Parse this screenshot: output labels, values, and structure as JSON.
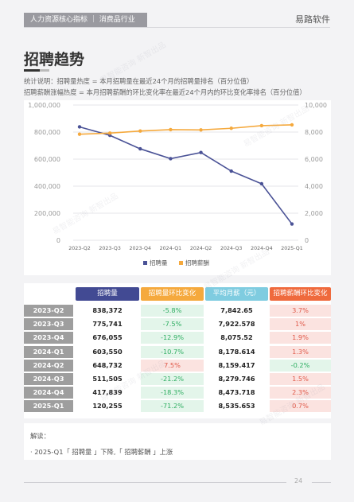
{
  "header": {
    "breadcrumb": "人力资源核心指标 ｜ 消费品行业",
    "brand": "易路软件"
  },
  "page": {
    "title": "招聘趋势",
    "desc_line1": "统计说明：招聘量热度 = 本月招聘量在最近24个月的招聘量排名（百分位值）",
    "desc_line2": "招聘薪酬涨幅热度 = 本月招聘薪酬的环比变化率在最近24个月内的环比变化率排名（百分位值）",
    "page_number": "24",
    "watermark": "易智能咨询 新智出品"
  },
  "chart_data": {
    "type": "line",
    "categories": [
      "2023-Q2",
      "2023-Q3",
      "2023-Q4",
      "2024-Q1",
      "2024-Q2",
      "2024-Q3",
      "2024-Q4",
      "2025-Q1"
    ],
    "series": [
      {
        "name": "招聘量",
        "axis": "left",
        "color": "#4a5296",
        "values": [
          838372,
          775741,
          676055,
          603550,
          648732,
          511505,
          417839,
          120255
        ]
      },
      {
        "name": "招聘薪酬",
        "axis": "right",
        "color": "#f5a93d",
        "values": [
          7842.65,
          7922.578,
          8075.52,
          8178.614,
          8159.417,
          8279.746,
          8473.718,
          8535.653
        ]
      }
    ],
    "y_left_ticks": [
      "1,000,000",
      "800,000",
      "600,000",
      "400,000",
      "200,000",
      "0"
    ],
    "y_right_ticks": [
      "10,000",
      "8,000",
      "6,000",
      "4,000",
      "2,000",
      "0"
    ],
    "y_left_range": [
      0,
      1000000
    ],
    "y_right_range": [
      0,
      10000
    ],
    "grid": true,
    "legend_position": "bottom"
  },
  "table": {
    "headers": [
      "招聘量",
      "招聘量环比变化",
      "平均月薪（元）",
      "招聘薪酬环比变化"
    ],
    "header_colors": [
      "#424a93",
      "#f5a93d",
      "#7fcce0",
      "#ef6a3d"
    ],
    "rows": [
      {
        "label": "2023-Q2",
        "volume": "838,372",
        "volume_change": "-5.8%",
        "salary": "7,842.65",
        "salary_change": "3.7%"
      },
      {
        "label": "2023-Q3",
        "volume": "775,741",
        "volume_change": "-7.5%",
        "salary": "7,922.578",
        "salary_change": "1%"
      },
      {
        "label": "2023-Q4",
        "volume": "676,055",
        "volume_change": "-12.9%",
        "salary": "8,075.52",
        "salary_change": "1.9%"
      },
      {
        "label": "2024-Q1",
        "volume": "603,550",
        "volume_change": "-10.7%",
        "salary": "8,178.614",
        "salary_change": "1.3%"
      },
      {
        "label": "2024-Q2",
        "volume": "648,732",
        "volume_change": "7.5%",
        "salary": "8,159.417",
        "salary_change": "-0.2%"
      },
      {
        "label": "2024-Q3",
        "volume": "511,505",
        "volume_change": "-21.2%",
        "salary": "8,279.746",
        "salary_change": "1.5%"
      },
      {
        "label": "2024-Q4",
        "volume": "417,839",
        "volume_change": "-18.3%",
        "salary": "8,473.718",
        "salary_change": "2.3%"
      },
      {
        "label": "2025-Q1",
        "volume": "120,255",
        "volume_change": "-71.2%",
        "salary": "8,535.653",
        "salary_change": "0.7%"
      }
    ]
  },
  "commentary": {
    "title": "解读：",
    "text": "· 2025-Q1「 招聘量 」下降,「 招聘薪酬 」上涨"
  }
}
